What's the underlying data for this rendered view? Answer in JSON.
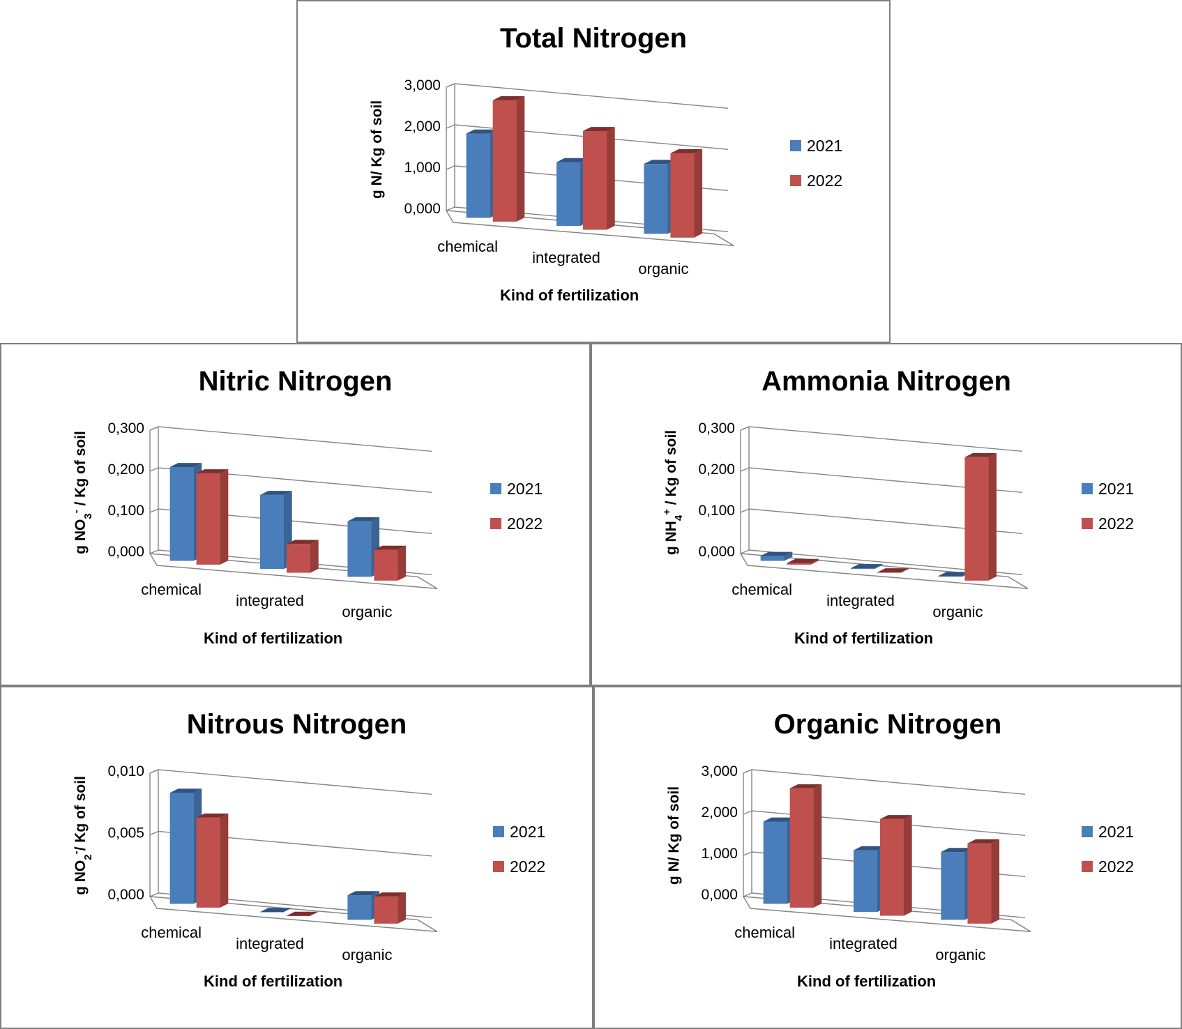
{
  "colors": {
    "series_2021": "#4a7ebb",
    "series_2021_dark": "#2f5383",
    "series_2021_side": "#3a6396",
    "series_2022": "#c0504d",
    "series_2022_dark": "#7c2f2d",
    "series_2022_side": "#963c39",
    "axis": "#868686"
  },
  "chart_data": [
    {
      "id": "total",
      "type": "bar",
      "title": "Total Nitrogen",
      "xlabel": "Kind of fertilization",
      "ylabel": "g N/ Kg of soil",
      "categories": [
        "chemical",
        "integrated",
        "organic"
      ],
      "series": [
        {
          "name": "2021",
          "values": [
            2.05,
            1.55,
            1.7
          ]
        },
        {
          "name": "2022",
          "values": [
            2.95,
            2.4,
            2.05
          ]
        }
      ],
      "ylim": [
        0,
        3
      ],
      "yticks": [
        "0,000",
        "1,000",
        "2,000",
        "3,000"
      ],
      "grid": true,
      "legend": "right"
    },
    {
      "id": "nitric",
      "type": "bar",
      "title": "Nitric Nitrogen",
      "xlabel": "Kind of fertilization",
      "ylabel": "g NO3- / Kg of soil",
      "ylabel_parts": {
        "before": "g NO",
        "sub": "3",
        "sup": "-",
        "after": " / Kg of soil"
      },
      "categories": [
        "chemical",
        "integrated",
        "organic"
      ],
      "series": [
        {
          "name": "2021",
          "values": [
            0.228,
            0.18,
            0.135
          ]
        },
        {
          "name": "2022",
          "values": [
            0.222,
            0.07,
            0.075
          ]
        }
      ],
      "ylim": [
        0,
        0.3
      ],
      "yticks": [
        "0,000",
        "0,100",
        "0,200",
        "0,300"
      ],
      "grid": true,
      "legend": "right"
    },
    {
      "id": "ammonia",
      "type": "bar",
      "title": "Ammonia Nitrogen",
      "xlabel": "Kind of fertilization",
      "ylabel": "g NH4+ / Kg of soil",
      "ylabel_parts": {
        "before": "g NH",
        "sub": "4",
        "sup": "+",
        "after": " / Kg of soil"
      },
      "categories": [
        "chemical",
        "integrated",
        "organic"
      ],
      "series": [
        {
          "name": "2021",
          "values": [
            0.012,
            0.002,
            0.002
          ]
        },
        {
          "name": "2022",
          "values": [
            0.004,
            0.001,
            0.3
          ]
        }
      ],
      "ylim": [
        0,
        0.3
      ],
      "yticks": [
        "0,000",
        "0,100",
        "0,200",
        "0,300"
      ],
      "grid": true,
      "legend": "right"
    },
    {
      "id": "nitrous",
      "type": "bar",
      "title": "Nitrous Nitrogen",
      "xlabel": "Kind of fertilization",
      "ylabel": "g NO2-/ Kg of soil",
      "ylabel_parts": {
        "before": "g NO",
        "sub": "2",
        "sup": "-",
        "after": "/ Kg of soil"
      },
      "categories": [
        "chemical",
        "integrated",
        "organic"
      ],
      "series": [
        {
          "name": "2021",
          "values": [
            0.009,
            0.0,
            0.002
          ]
        },
        {
          "name": "2022",
          "values": [
            0.0073,
            0.0,
            0.0022
          ]
        }
      ],
      "ylim": [
        0,
        0.01
      ],
      "yticks": [
        "0,000",
        "0,005",
        "0,010"
      ],
      "grid": true,
      "legend": "right"
    },
    {
      "id": "organic",
      "type": "bar",
      "title": "Organic Nitrogen",
      "xlabel": "Kind of fertilization",
      "ylabel": "g N/ Kg of soil",
      "categories": [
        "chemical",
        "integrated",
        "organic"
      ],
      "series": [
        {
          "name": "2021",
          "values": [
            2.0,
            1.5,
            1.65
          ]
        },
        {
          "name": "2022",
          "values": [
            2.9,
            2.35,
            1.95
          ]
        }
      ],
      "ylim": [
        0,
        3
      ],
      "yticks": [
        "0,000",
        "1,000",
        "2,000",
        "3,000"
      ],
      "grid": true,
      "legend": "right"
    }
  ]
}
